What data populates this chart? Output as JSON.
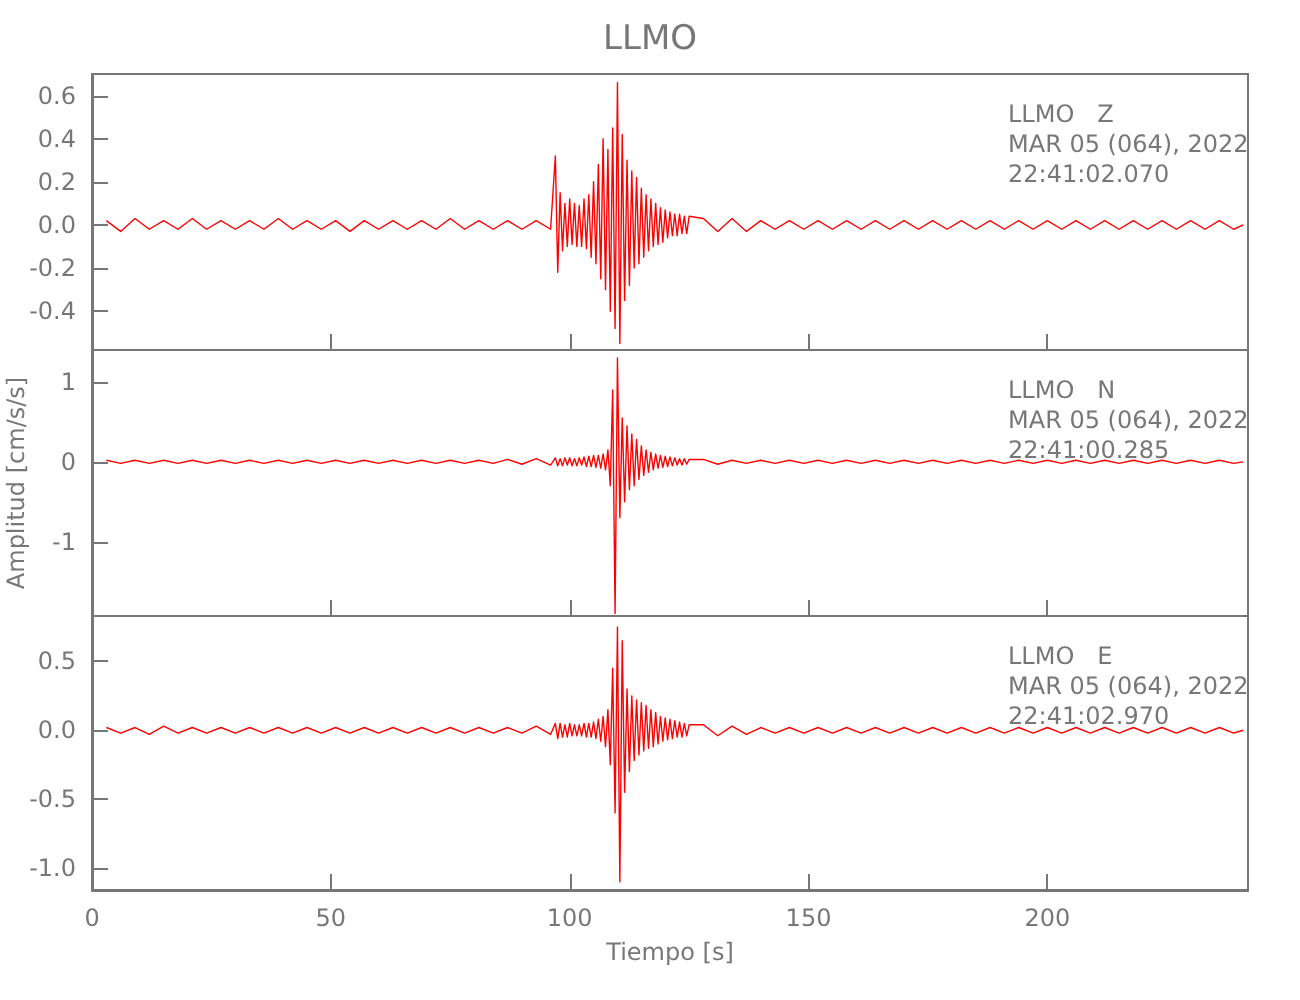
{
  "chart_data": [
    {
      "type": "line",
      "title": "LLMO",
      "annotations": [
        "LLMO   Z",
        "MAR 05 (064), 2022",
        "22:41:02.070"
      ],
      "tick_labels": "y",
      "x": [
        3,
        6,
        9,
        12,
        15,
        18,
        21,
        24,
        27,
        30,
        33,
        36,
        39,
        42,
        45,
        48,
        51,
        54,
        57,
        60,
        63,
        66,
        69,
        72,
        75,
        78,
        81,
        84,
        87,
        90,
        93,
        96,
        97,
        97.5,
        98,
        98.5,
        99,
        99.5,
        100,
        100.5,
        101,
        101.5,
        102,
        102.5,
        103,
        103.5,
        104,
        104.5,
        105,
        105.5,
        106,
        106.5,
        107,
        107.5,
        108,
        108.5,
        109,
        109.5,
        110,
        110.5,
        111,
        111.5,
        112,
        112.5,
        113,
        113.5,
        114,
        114.5,
        115,
        115.5,
        116,
        116.5,
        117,
        117.5,
        118,
        118.5,
        119,
        119.5,
        120,
        120.5,
        121,
        121.5,
        122,
        122.5,
        123,
        123.5,
        124,
        124.5,
        125,
        128,
        131,
        134,
        137,
        140,
        143,
        146,
        149,
        152,
        155,
        158,
        161,
        164,
        167,
        170,
        173,
        176,
        179,
        182,
        185,
        188,
        191,
        194,
        197,
        200,
        203,
        206,
        209,
        212,
        215,
        218,
        221,
        224,
        227,
        230,
        233,
        236,
        239,
        241
      ],
      "series": [
        {
          "color": "#ff0000",
          "values": [
            0.02,
            -0.03,
            0.03,
            -0.02,
            0.02,
            -0.02,
            0.03,
            -0.02,
            0.02,
            -0.02,
            0.02,
            -0.02,
            0.03,
            -0.02,
            0.02,
            -0.02,
            0.02,
            -0.03,
            0.02,
            -0.02,
            0.02,
            -0.02,
            0.02,
            -0.02,
            0.03,
            -0.02,
            0.02,
            -0.02,
            0.02,
            -0.02,
            0.02,
            -0.02,
            0.32,
            -0.22,
            0.15,
            -0.12,
            0.1,
            -0.1,
            0.12,
            -0.09,
            0.1,
            -0.1,
            0.09,
            -0.1,
            0.12,
            -0.11,
            0.14,
            -0.15,
            0.2,
            -0.18,
            0.28,
            -0.25,
            0.4,
            -0.3,
            0.35,
            -0.4,
            0.45,
            -0.48,
            0.66,
            -0.55,
            0.42,
            -0.35,
            0.3,
            -0.28,
            0.25,
            -0.2,
            0.22,
            -0.18,
            0.17,
            -0.15,
            0.14,
            -0.12,
            0.12,
            -0.1,
            0.1,
            -0.09,
            0.08,
            -0.08,
            0.07,
            -0.06,
            0.06,
            -0.05,
            0.05,
            -0.05,
            0.05,
            -0.04,
            0.04,
            -0.04,
            0.04,
            0.03,
            -0.03,
            0.03,
            -0.03,
            0.02,
            -0.02,
            0.02,
            -0.02,
            0.02,
            -0.02,
            0.02,
            -0.02,
            0.02,
            -0.02,
            0.02,
            -0.02,
            0.02,
            -0.02,
            0.02,
            -0.02,
            0.02,
            -0.02,
            0.02,
            -0.02,
            0.02,
            -0.02,
            0.02,
            -0.02,
            0.02,
            -0.02,
            0.02,
            -0.02,
            0.02,
            -0.02,
            0.02,
            -0.02,
            0.02,
            -0.02,
            0
          ]
        }
      ],
      "xlim": [
        0,
        242
      ],
      "xticks": [
        0,
        50,
        100,
        150,
        200
      ],
      "ylim": [
        -0.58,
        0.7
      ],
      "yticks": [
        -0.4,
        -0.2,
        {
          "value": 0,
          "label": "0.0"
        },
        0.2,
        0.4,
        0.6
      ]
    },
    {
      "type": "line",
      "ylabel": "Amplitud [cm/s/s]",
      "annotations": [
        "LLMO   N",
        "MAR 05 (064), 2022",
        "22:41:00.285"
      ],
      "tick_labels": "y",
      "x": [
        3,
        6,
        9,
        12,
        15,
        18,
        21,
        24,
        27,
        30,
        33,
        36,
        39,
        42,
        45,
        48,
        51,
        54,
        57,
        60,
        63,
        66,
        69,
        72,
        75,
        78,
        81,
        84,
        87,
        90,
        93,
        96,
        97,
        97.5,
        98,
        98.5,
        99,
        99.5,
        100,
        100.5,
        101,
        101.5,
        102,
        102.5,
        103,
        103.5,
        104,
        104.5,
        105,
        105.5,
        106,
        106.5,
        107,
        107.5,
        108,
        108.5,
        109,
        109.5,
        110,
        110.5,
        111,
        111.5,
        112,
        112.5,
        113,
        113.5,
        114,
        114.5,
        115,
        115.5,
        116,
        116.5,
        117,
        117.5,
        118,
        118.5,
        119,
        119.5,
        120,
        120.5,
        121,
        121.5,
        122,
        122.5,
        123,
        123.5,
        124,
        124.5,
        125,
        128,
        131,
        134,
        137,
        140,
        143,
        146,
        149,
        152,
        155,
        158,
        161,
        164,
        167,
        170,
        173,
        176,
        179,
        182,
        185,
        188,
        191,
        194,
        197,
        200,
        203,
        206,
        209,
        212,
        215,
        218,
        221,
        224,
        227,
        230,
        233,
        236,
        239,
        241
      ],
      "series": [
        {
          "color": "#ff0000",
          "values": [
            0.02,
            -0.02,
            0.02,
            -0.02,
            0.02,
            -0.02,
            0.02,
            -0.02,
            0.02,
            -0.02,
            0.02,
            -0.02,
            0.02,
            -0.02,
            0.02,
            -0.02,
            0.02,
            -0.02,
            0.02,
            -0.02,
            0.02,
            -0.02,
            0.02,
            -0.02,
            0.02,
            -0.02,
            0.02,
            -0.02,
            0.03,
            -0.03,
            0.04,
            -0.04,
            0.05,
            -0.05,
            0.04,
            -0.05,
            0.05,
            -0.04,
            0.05,
            -0.05,
            0.04,
            -0.05,
            0.05,
            -0.04,
            0.06,
            -0.06,
            0.07,
            -0.06,
            0.08,
            -0.07,
            0.08,
            -0.08,
            0.1,
            -0.1,
            0.15,
            -0.3,
            0.9,
            -1.9,
            1.3,
            -0.7,
            0.55,
            -0.5,
            0.45,
            -0.35,
            0.35,
            -0.3,
            0.28,
            -0.22,
            0.2,
            -0.17,
            0.15,
            -0.13,
            0.12,
            -0.1,
            0.1,
            -0.08,
            0.08,
            -0.07,
            0.07,
            -0.06,
            0.06,
            -0.05,
            0.05,
            -0.04,
            0.04,
            -0.04,
            0.04,
            -0.03,
            0.03,
            0.03,
            -0.03,
            0.02,
            -0.02,
            0.02,
            -0.02,
            0.02,
            -0.02,
            0.02,
            -0.02,
            0.02,
            -0.02,
            0.02,
            -0.02,
            0.02,
            -0.02,
            0.02,
            -0.02,
            0.02,
            -0.02,
            0.02,
            -0.02,
            0.02,
            -0.02,
            0.02,
            -0.02,
            0.02,
            -0.02,
            0.02,
            -0.02,
            0.02,
            -0.02,
            0.02,
            -0.02,
            0.02,
            -0.02,
            0.02,
            -0.02,
            0
          ]
        }
      ],
      "xlim": [
        0,
        242
      ],
      "xticks": [
        0,
        50,
        100,
        150,
        200
      ],
      "ylim": [
        -1.93,
        1.4
      ],
      "yticks": [
        -1,
        0,
        1
      ]
    },
    {
      "type": "line",
      "xlabel": "Tiempo [s]",
      "annotations": [
        "LLMO   E",
        "MAR 05 (064), 2022",
        "22:41:02.970"
      ],
      "x": [
        3,
        6,
        9,
        12,
        15,
        18,
        21,
        24,
        27,
        30,
        33,
        36,
        39,
        42,
        45,
        48,
        51,
        54,
        57,
        60,
        63,
        66,
        69,
        72,
        75,
        78,
        81,
        84,
        87,
        90,
        93,
        96,
        97,
        97.5,
        98,
        98.5,
        99,
        99.5,
        100,
        100.5,
        101,
        101.5,
        102,
        102.5,
        103,
        103.5,
        104,
        104.5,
        105,
        105.5,
        106,
        106.5,
        107,
        107.5,
        108,
        108.5,
        109,
        109.5,
        110,
        110.5,
        111,
        111.5,
        112,
        112.5,
        113,
        113.5,
        114,
        114.5,
        115,
        115.5,
        116,
        116.5,
        117,
        117.5,
        118,
        118.5,
        119,
        119.5,
        120,
        120.5,
        121,
        121.5,
        122,
        122.5,
        123,
        123.5,
        124,
        124.5,
        125,
        128,
        131,
        134,
        137,
        140,
        143,
        146,
        149,
        152,
        155,
        158,
        161,
        164,
        167,
        170,
        173,
        176,
        179,
        182,
        185,
        188,
        191,
        194,
        197,
        200,
        203,
        206,
        209,
        212,
        215,
        218,
        221,
        224,
        227,
        230,
        233,
        236,
        239,
        241
      ],
      "series": [
        {
          "color": "#ff0000",
          "values": [
            0.02,
            -0.02,
            0.02,
            -0.03,
            0.03,
            -0.02,
            0.02,
            -0.02,
            0.02,
            -0.02,
            0.02,
            -0.02,
            0.02,
            -0.02,
            0.02,
            -0.02,
            0.02,
            -0.02,
            0.02,
            -0.02,
            0.02,
            -0.02,
            0.02,
            -0.02,
            0.02,
            -0.02,
            0.02,
            -0.02,
            0.02,
            -0.02,
            0.03,
            -0.03,
            0.05,
            -0.06,
            0.05,
            -0.05,
            0.04,
            -0.05,
            0.05,
            -0.04,
            0.04,
            -0.04,
            0.04,
            -0.04,
            0.05,
            -0.05,
            0.05,
            -0.05,
            0.06,
            -0.06,
            0.08,
            -0.08,
            0.1,
            -0.12,
            0.15,
            -0.25,
            0.45,
            -0.6,
            0.75,
            -1.1,
            0.65,
            -0.45,
            0.3,
            -0.3,
            0.25,
            -0.22,
            0.22,
            -0.18,
            0.2,
            -0.15,
            0.18,
            -0.13,
            0.15,
            -0.12,
            0.13,
            -0.1,
            0.1,
            -0.08,
            0.09,
            -0.07,
            0.08,
            -0.06,
            0.07,
            -0.05,
            0.06,
            -0.05,
            0.05,
            -0.04,
            0.04,
            0.04,
            -0.04,
            0.03,
            -0.03,
            0.02,
            -0.02,
            0.02,
            -0.02,
            0.02,
            -0.02,
            0.02,
            -0.02,
            0.02,
            -0.02,
            0.02,
            -0.02,
            0.02,
            -0.02,
            0.02,
            -0.02,
            0.02,
            -0.02,
            0.02,
            -0.02,
            0.02,
            -0.02,
            0.02,
            -0.02,
            0.02,
            -0.02,
            0.02,
            -0.02,
            0.02,
            -0.02,
            0.02,
            -0.02,
            0.02,
            -0.02,
            0
          ]
        }
      ],
      "xlim": [
        0,
        242
      ],
      "xticks": [
        0,
        50,
        100,
        150,
        200
      ],
      "ylim": [
        -1.16,
        0.83
      ],
      "yticks": [
        {
          "value": -1,
          "label": "-1.0"
        },
        {
          "value": -0.5,
          "label": "-0.5"
        },
        {
          "value": 0,
          "label": "0.0"
        },
        {
          "value": 0.5,
          "label": "0.5"
        }
      ]
    }
  ]
}
